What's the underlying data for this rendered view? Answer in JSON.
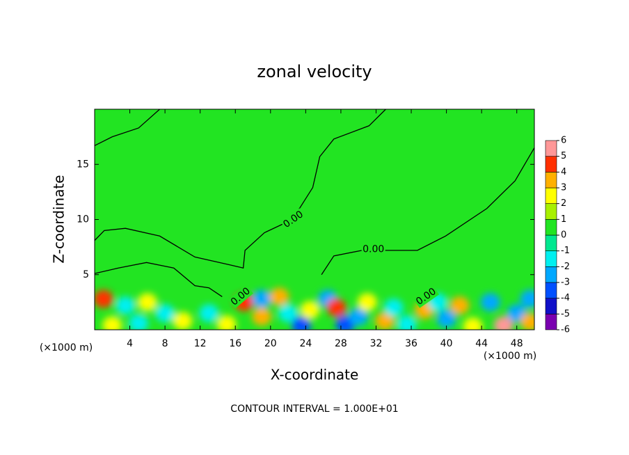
{
  "chart_data": {
    "type": "contour",
    "title": "zonal velocity",
    "x_label": "X-coordinate",
    "y_label": "Z-coordinate",
    "x_unit_left": "(×1000 m)",
    "x_unit_right": "(×1000 m)",
    "footnote": "CONTOUR INTERVAL = 1.000E+01",
    "xlim": [
      0,
      50
    ],
    "ylim": [
      0,
      20
    ],
    "xticks": [
      4,
      8,
      12,
      16,
      20,
      24,
      28,
      32,
      36,
      40,
      44,
      48
    ],
    "yticks": [
      5,
      10,
      15
    ],
    "background_color": "#22e422",
    "colorbar": {
      "ticks": [
        -6,
        -5,
        -4,
        -3,
        -2,
        -1,
        0,
        1,
        2,
        3,
        4,
        5,
        6
      ],
      "colors": [
        "#7a00b0",
        "#1010c8",
        "#0050ff",
        "#00a8ff",
        "#00f0f0",
        "#00e890",
        "#22e422",
        "#a8f000",
        "#ffff00",
        "#ffb000",
        "#ff3000",
        "#ff9898"
      ]
    },
    "contours": [
      {
        "x": [
          0,
          2,
          5,
          7.4
        ],
        "z": [
          16.7,
          17.5,
          18.3,
          20
        ]
      },
      {
        "x": [
          0,
          1.1,
          3.5,
          7.4,
          11.4,
          15.3,
          16.9,
          17.1,
          19.3,
          22.5,
          24.8,
          25.6,
          27.2,
          31.2,
          33.1
        ],
        "z": [
          8.1,
          9,
          9.2,
          8.5,
          6.6,
          5.9,
          5.6,
          7.2,
          8.8,
          10,
          12.9,
          15.7,
          17.3,
          18.5,
          20
        ]
      },
      {
        "x": [
          0,
          2.7,
          5.9,
          9,
          11.4,
          13,
          14.5
        ],
        "z": [
          5.1,
          5.6,
          6.1,
          5.6,
          4,
          3.8,
          3
        ]
      },
      {
        "x": [
          25.8,
          27.2,
          30.4,
          36.7,
          39.9,
          44.6,
          47.8,
          50
        ],
        "z": [
          5,
          6.7,
          7.2,
          7.2,
          8.5,
          11,
          13.5,
          16.5
        ]
      }
    ],
    "contour_labels": [
      {
        "label": "0.00",
        "x": 22.6,
        "z": 10,
        "angle": -35
      },
      {
        "label": "0.00",
        "x": 31.7,
        "z": 7.3,
        "angle": 0
      },
      {
        "label": "0.00",
        "x": 16.6,
        "z": 3,
        "angle": -40
      },
      {
        "label": "0.00",
        "x": 37.7,
        "z": 3,
        "angle": -35
      }
    ],
    "blobs": [
      {
        "x": 1,
        "z": 2.8,
        "value": 4
      },
      {
        "x": 3.5,
        "z": 2.2,
        "value": -2
      },
      {
        "x": 6,
        "z": 2.5,
        "value": 2
      },
      {
        "x": 8,
        "z": 1.5,
        "value": -1.5
      },
      {
        "x": 10,
        "z": 0.8,
        "value": 2
      },
      {
        "x": 13,
        "z": 1.5,
        "value": -2
      },
      {
        "x": 15,
        "z": 0.5,
        "value": 2
      },
      {
        "x": 17,
        "z": 2.5,
        "value": 4
      },
      {
        "x": 19,
        "z": 1.2,
        "value": 3
      },
      {
        "x": 19,
        "z": 2.8,
        "value": -3
      },
      {
        "x": 21,
        "z": 3,
        "value": 3
      },
      {
        "x": 22,
        "z": 1.5,
        "value": -2
      },
      {
        "x": 23.5,
        "z": 0.4,
        "value": -4
      },
      {
        "x": 24.5,
        "z": 1.8,
        "value": 2
      },
      {
        "x": 26.5,
        "z": 2.8,
        "value": -3
      },
      {
        "x": 27.5,
        "z": 2,
        "value": 4
      },
      {
        "x": 28.5,
        "z": 0.5,
        "value": -4
      },
      {
        "x": 30,
        "z": 1.2,
        "value": -3
      },
      {
        "x": 31,
        "z": 2.5,
        "value": 2
      },
      {
        "x": 33,
        "z": 0.8,
        "value": 3
      },
      {
        "x": 34,
        "z": 2,
        "value": -2
      },
      {
        "x": 35.5,
        "z": 0.5,
        "value": -2
      },
      {
        "x": 37.5,
        "z": 1.8,
        "value": 3
      },
      {
        "x": 39,
        "z": 2.5,
        "value": -2
      },
      {
        "x": 40,
        "z": 1,
        "value": -3
      },
      {
        "x": 41.5,
        "z": 2.2,
        "value": 3
      },
      {
        "x": 43,
        "z": 0.3,
        "value": 2
      },
      {
        "x": 45,
        "z": 2.5,
        "value": -3
      },
      {
        "x": 46.5,
        "z": 0.4,
        "value": 5
      },
      {
        "x": 48,
        "z": 1.5,
        "value": -3
      },
      {
        "x": 49.5,
        "z": 2.8,
        "value": -3
      },
      {
        "x": 49.5,
        "z": 0.7,
        "value": 3
      },
      {
        "x": 2,
        "z": 0.4,
        "value": 2
      },
      {
        "x": 5,
        "z": 0.6,
        "value": -2
      }
    ]
  }
}
